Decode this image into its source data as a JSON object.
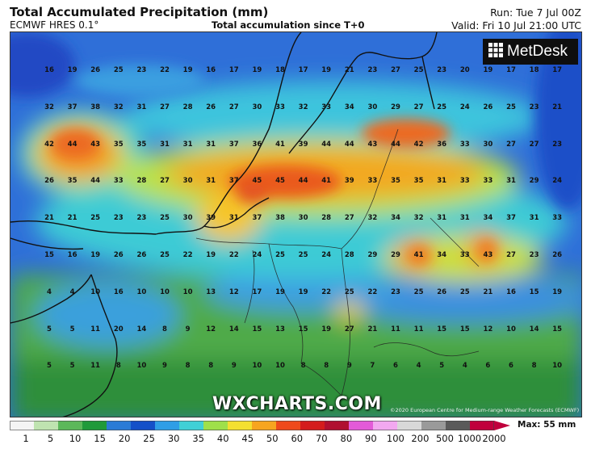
{
  "header": {
    "title": "Total Accumulated Precipitation (mm)",
    "model": "ECMWF HRES 0.1°",
    "subtitle": "Total accumulation since T+0",
    "run": "Run: Tue 7 Jul 00Z",
    "valid": "Valid: Fri 10 Jul 21:00 UTC"
  },
  "branding": {
    "logo_text": "MetDesk",
    "logo_icon": "metdesk-grid-icon",
    "watermark": "WXCHARTS.COM",
    "copyright": "©2020 European Centre for Medium-range Weather Forecasts (ECMWF)"
  },
  "legend": {
    "max_label": "Max: 55 mm",
    "ticks": [
      "1",
      "5",
      "10",
      "15",
      "20",
      "25",
      "30",
      "35",
      "40",
      "45",
      "50",
      "60",
      "70",
      "80",
      "90",
      "100",
      "200",
      "500",
      "1000",
      "2000"
    ],
    "colors": [
      "#f4f4f4",
      "#bfe3b0",
      "#5cb85a",
      "#1f9a3a",
      "#2a7bd6",
      "#1450c8",
      "#2f9ee6",
      "#40d0d6",
      "#9fe04a",
      "#f4e030",
      "#f7a51f",
      "#ef4a1b",
      "#d41c1c",
      "#b01030",
      "#e35ad8",
      "#f2a8f0",
      "#d8d8d8",
      "#9a9a9a",
      "#5a5a5a",
      "#c0003c"
    ]
  },
  "grid_values": [
    [
      "16",
      "19",
      "26",
      "25",
      "23",
      "22",
      "19",
      "16",
      "17",
      "19",
      "18",
      "17",
      "19",
      "21",
      "23",
      "27",
      "25",
      "23",
      "20",
      "19",
      "17",
      "18",
      "17"
    ],
    [
      "32",
      "37",
      "38",
      "32",
      "31",
      "27",
      "28",
      "26",
      "27",
      "30",
      "33",
      "32",
      "33",
      "34",
      "30",
      "29",
      "27",
      "25",
      "24",
      "26",
      "25",
      "23",
      "21"
    ],
    [
      "42",
      "44",
      "43",
      "35",
      "35",
      "31",
      "31",
      "31",
      "37",
      "36",
      "41",
      "39",
      "44",
      "44",
      "43",
      "44",
      "42",
      "36",
      "33",
      "30",
      "27",
      "27",
      "23"
    ],
    [
      "26",
      "35",
      "44",
      "33",
      "28",
      "27",
      "30",
      "31",
      "37",
      "45",
      "45",
      "44",
      "41",
      "39",
      "33",
      "35",
      "35",
      "31",
      "33",
      "33",
      "31",
      "29",
      "24"
    ],
    [
      "21",
      "21",
      "25",
      "23",
      "23",
      "25",
      "30",
      "39",
      "31",
      "37",
      "38",
      "30",
      "28",
      "27",
      "32",
      "34",
      "32",
      "31",
      "31",
      "34",
      "37",
      "31",
      "33"
    ],
    [
      "15",
      "16",
      "19",
      "26",
      "26",
      "25",
      "22",
      "19",
      "22",
      "24",
      "25",
      "25",
      "24",
      "28",
      "29",
      "29",
      "41",
      "34",
      "33",
      "43",
      "27",
      "23",
      "26"
    ],
    [
      "4",
      "4",
      "10",
      "16",
      "10",
      "10",
      "10",
      "13",
      "12",
      "17",
      "19",
      "19",
      "22",
      "25",
      "22",
      "23",
      "25",
      "26",
      "25",
      "21",
      "16",
      "15",
      "19"
    ],
    [
      "5",
      "5",
      "11",
      "20",
      "14",
      "8",
      "9",
      "12",
      "14",
      "15",
      "13",
      "15",
      "19",
      "27",
      "21",
      "11",
      "11",
      "15",
      "15",
      "12",
      "10",
      "14",
      "15"
    ],
    [
      "5",
      "5",
      "11",
      "8",
      "10",
      "9",
      "8",
      "8",
      "9",
      "10",
      "10",
      "8",
      "8",
      "9",
      "7",
      "6",
      "4",
      "5",
      "4",
      "6",
      "6",
      "8",
      "10"
    ]
  ]
}
